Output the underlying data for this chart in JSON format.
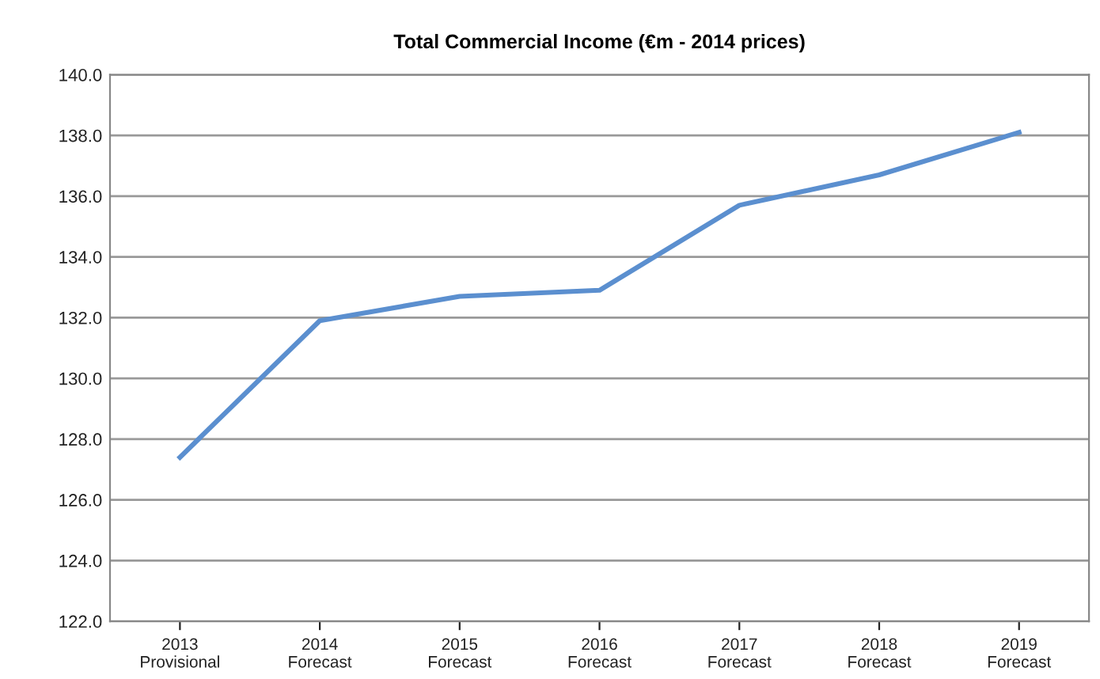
{
  "chart_data": {
    "type": "line",
    "title": "Total Commercial Income (€m - 2014 prices)",
    "categories": [
      "2013\nProvisional",
      "2014\nForecast",
      "2015\nForecast",
      "2016\nForecast",
      "2017\nForecast",
      "2018\nForecast",
      "2019\nForecast"
    ],
    "series": [
      {
        "color": "#5b8fcf",
        "values": [
          127.4,
          131.9,
          132.7,
          132.9,
          135.7,
          136.7,
          138.1
        ]
      }
    ],
    "ylim": [
      122,
      140
    ],
    "yticks": [
      {
        "value": 122,
        "label": "122.0"
      },
      {
        "value": 124,
        "label": "124.0"
      },
      {
        "value": 126,
        "label": "126.0"
      },
      {
        "value": 128,
        "label": "128.0"
      },
      {
        "value": 130,
        "label": "130.0"
      },
      {
        "value": 132,
        "label": "132.0"
      },
      {
        "value": 134,
        "label": "134.0"
      },
      {
        "value": 136,
        "label": "136.0"
      },
      {
        "value": 138,
        "label": "138.0"
      },
      {
        "value": 140,
        "label": "140.0"
      }
    ],
    "grid": "y",
    "legend": false,
    "marker": "none",
    "line_style": "solid"
  }
}
